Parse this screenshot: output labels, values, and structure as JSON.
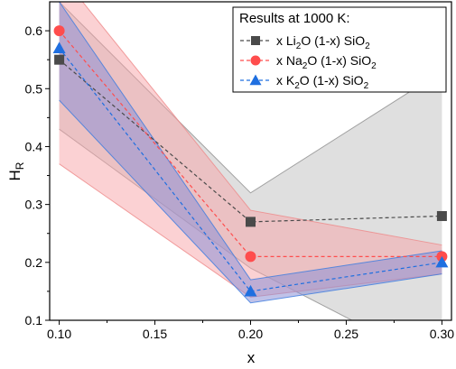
{
  "chart_data": {
    "type": "line",
    "xlabel": "x",
    "ylabel_main": "H",
    "ylabel_sub": "R",
    "xlim": [
      0.095,
      0.305
    ],
    "ylim": [
      0.1,
      0.65
    ],
    "xticks": [
      0.1,
      0.15,
      0.2,
      0.25,
      0.3
    ],
    "xtick_labels": [
      "0.10",
      "0.15",
      "0.20",
      "0.25",
      "0.30"
    ],
    "yticks": [
      0.1,
      0.2,
      0.3,
      0.4,
      0.5,
      0.6
    ],
    "ytick_labels": [
      "0.1",
      "0.2",
      "0.3",
      "0.4",
      "0.5",
      "0.6"
    ],
    "x": [
      0.1,
      0.2,
      0.3
    ],
    "legend": {
      "title": "Results at 1000 K:",
      "position": "top-right"
    },
    "series": [
      {
        "name_parts": [
          "x Li",
          "2",
          "O (1-x) SiO",
          "2"
        ],
        "marker": "square",
        "color": "#4a4a4a",
        "band_color": "#bfbfbf",
        "band_edge": "#8c8c8c",
        "values": [
          0.55,
          0.27,
          0.28
        ],
        "band_lower": [
          0.43,
          0.19,
          0.02
        ],
        "band_upper": [
          0.65,
          0.32,
          0.53
        ]
      },
      {
        "name_parts": [
          "x Na",
          "2",
          "O (1-x) SiO",
          "2"
        ],
        "marker": "circle",
        "color": "#ff4d4d",
        "band_color": "#f7a3a8",
        "band_edge": "#e88",
        "values": [
          0.6,
          0.21,
          0.21
        ],
        "band_lower": [
          0.37,
          0.14,
          0.18
        ],
        "band_upper": [
          0.7,
          0.29,
          0.23
        ]
      },
      {
        "name_parts": [
          "x K",
          "2",
          "O (1-x) SiO",
          "2"
        ],
        "marker": "triangle",
        "color": "#1f6fe0",
        "band_color": "#8d8fd6",
        "band_edge": "#3a7be0",
        "values": [
          0.57,
          0.15,
          0.2
        ],
        "band_lower": [
          0.48,
          0.13,
          0.18
        ],
        "band_upper": [
          0.65,
          0.17,
          0.22
        ]
      }
    ]
  }
}
